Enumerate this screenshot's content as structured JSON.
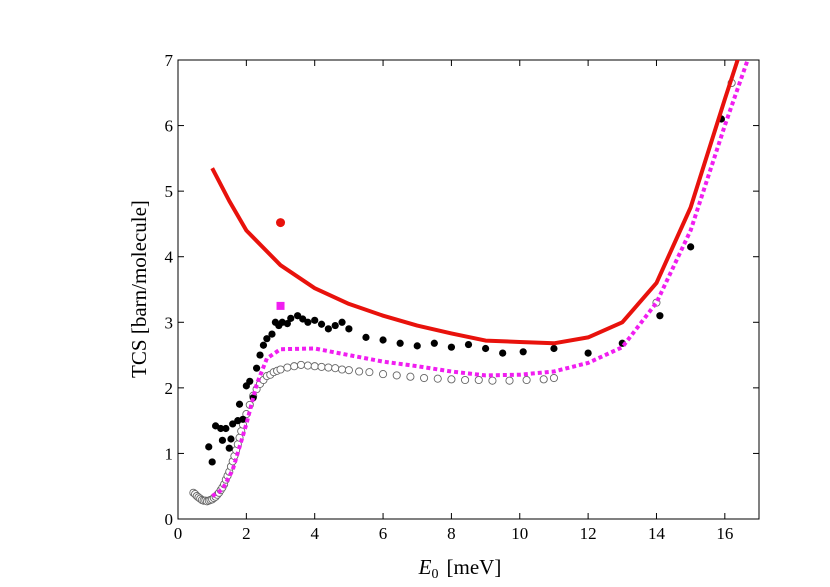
{
  "chart_data": {
    "type": "scatter",
    "xlabel_var": "E",
    "xlabel_sub": "0",
    "xlabel_unit": "[meV]",
    "ylabel": "TCS  [barn/molecule]",
    "xlim": [
      0,
      17
    ],
    "ylim": [
      0,
      7
    ],
    "xticks": [
      0,
      2,
      4,
      6,
      8,
      10,
      12,
      14,
      16
    ],
    "yticks": [
      0,
      1,
      2,
      3,
      4,
      5,
      6,
      7
    ],
    "grid": false,
    "colors": {
      "red": "#e8120c",
      "magenta": "#f01ef0",
      "black": "#000000",
      "open": "#666666"
    },
    "series": [
      {
        "style": "filled-black",
        "points": [
          [
            0.9,
            1.1
          ],
          [
            1.0,
            0.87
          ],
          [
            1.1,
            1.42
          ],
          [
            1.25,
            1.38
          ],
          [
            1.3,
            1.2
          ],
          [
            1.4,
            1.38
          ],
          [
            1.5,
            1.08
          ],
          [
            1.55,
            1.22
          ],
          [
            1.6,
            1.45
          ],
          [
            1.75,
            1.5
          ],
          [
            1.8,
            1.75
          ],
          [
            1.9,
            1.52
          ],
          [
            2.0,
            2.03
          ],
          [
            2.1,
            2.1
          ],
          [
            2.2,
            1.85
          ],
          [
            2.3,
            2.3
          ],
          [
            2.4,
            2.5
          ],
          [
            2.5,
            2.65
          ],
          [
            2.6,
            2.75
          ],
          [
            2.75,
            2.82
          ],
          [
            2.85,
            3.0
          ],
          [
            2.95,
            2.95
          ],
          [
            3.05,
            3.0
          ],
          [
            3.2,
            2.98
          ],
          [
            3.3,
            3.06
          ],
          [
            3.5,
            3.1
          ],
          [
            3.65,
            3.05
          ],
          [
            3.8,
            3.0
          ],
          [
            4.0,
            3.03
          ],
          [
            4.2,
            2.97
          ],
          [
            4.4,
            2.9
          ],
          [
            4.6,
            2.95
          ],
          [
            4.8,
            3.0
          ],
          [
            5.0,
            2.9
          ],
          [
            5.5,
            2.77
          ],
          [
            6.0,
            2.73
          ],
          [
            6.5,
            2.68
          ],
          [
            7.0,
            2.64
          ],
          [
            7.5,
            2.68
          ],
          [
            8.0,
            2.62
          ],
          [
            8.5,
            2.66
          ],
          [
            9.0,
            2.6
          ],
          [
            9.5,
            2.53
          ],
          [
            10.1,
            2.55
          ],
          [
            11.0,
            2.6
          ],
          [
            12.0,
            2.53
          ],
          [
            13.0,
            2.68
          ],
          [
            14.1,
            3.1
          ],
          [
            15.0,
            4.15
          ],
          [
            15.9,
            6.1
          ]
        ]
      },
      {
        "style": "open-circle",
        "points": [
          [
            0.45,
            0.4
          ],
          [
            0.5,
            0.38
          ],
          [
            0.55,
            0.35
          ],
          [
            0.6,
            0.33
          ],
          [
            0.65,
            0.31
          ],
          [
            0.7,
            0.29
          ],
          [
            0.75,
            0.28
          ],
          [
            0.8,
            0.28
          ],
          [
            0.85,
            0.27
          ],
          [
            0.9,
            0.28
          ],
          [
            0.95,
            0.29
          ],
          [
            1.0,
            0.3
          ],
          [
            1.05,
            0.32
          ],
          [
            1.1,
            0.34
          ],
          [
            1.15,
            0.37
          ],
          [
            1.2,
            0.4
          ],
          [
            1.25,
            0.44
          ],
          [
            1.3,
            0.48
          ],
          [
            1.35,
            0.53
          ],
          [
            1.4,
            0.6
          ],
          [
            1.45,
            0.66
          ],
          [
            1.5,
            0.72
          ],
          [
            1.55,
            0.8
          ],
          [
            1.6,
            0.88
          ],
          [
            1.65,
            0.96
          ],
          [
            1.7,
            1.05
          ],
          [
            1.75,
            1.14
          ],
          [
            1.8,
            1.24
          ],
          [
            1.85,
            1.34
          ],
          [
            1.9,
            1.44
          ],
          [
            2.0,
            1.6
          ],
          [
            2.1,
            1.74
          ],
          [
            2.2,
            1.88
          ],
          [
            2.3,
            1.98
          ],
          [
            2.4,
            2.06
          ],
          [
            2.5,
            2.12
          ],
          [
            2.6,
            2.18
          ],
          [
            2.7,
            2.2
          ],
          [
            2.8,
            2.24
          ],
          [
            2.9,
            2.26
          ],
          [
            3.0,
            2.28
          ],
          [
            3.2,
            2.31
          ],
          [
            3.4,
            2.33
          ],
          [
            3.6,
            2.35
          ],
          [
            3.8,
            2.34
          ],
          [
            4.0,
            2.33
          ],
          [
            4.2,
            2.32
          ],
          [
            4.4,
            2.31
          ],
          [
            4.6,
            2.3
          ],
          [
            4.8,
            2.28
          ],
          [
            5.0,
            2.27
          ],
          [
            5.3,
            2.25
          ],
          [
            5.6,
            2.24
          ],
          [
            6.0,
            2.21
          ],
          [
            6.4,
            2.19
          ],
          [
            6.8,
            2.17
          ],
          [
            7.2,
            2.15
          ],
          [
            7.6,
            2.14
          ],
          [
            8.0,
            2.13
          ],
          [
            8.4,
            2.12
          ],
          [
            8.8,
            2.12
          ],
          [
            9.2,
            2.11
          ],
          [
            9.7,
            2.11
          ],
          [
            10.2,
            2.12
          ],
          [
            10.7,
            2.13
          ],
          [
            11.0,
            2.15
          ],
          [
            14.0,
            3.3
          ],
          [
            16.2,
            6.65
          ]
        ]
      },
      {
        "style": "red-line",
        "points": [
          [
            1.0,
            5.35
          ],
          [
            1.5,
            4.85
          ],
          [
            2.0,
            4.4
          ],
          [
            3.0,
            3.87
          ],
          [
            4.0,
            3.52
          ],
          [
            5.0,
            3.28
          ],
          [
            6.0,
            3.1
          ],
          [
            7.0,
            2.95
          ],
          [
            8.0,
            2.83
          ],
          [
            9.0,
            2.72
          ],
          [
            10.0,
            2.7
          ],
          [
            11.0,
            2.68
          ],
          [
            12.0,
            2.77
          ],
          [
            13.0,
            3.0
          ],
          [
            14.0,
            3.6
          ],
          [
            15.0,
            4.75
          ],
          [
            16.0,
            6.4
          ],
          [
            16.5,
            7.2
          ]
        ]
      },
      {
        "style": "magenta-dotted",
        "points": [
          [
            1.0,
            0.35
          ],
          [
            1.3,
            0.45
          ],
          [
            1.6,
            0.75
          ],
          [
            2.0,
            1.45
          ],
          [
            2.3,
            2.05
          ],
          [
            2.6,
            2.45
          ],
          [
            3.0,
            2.59
          ],
          [
            4.0,
            2.6
          ],
          [
            5.0,
            2.5
          ],
          [
            6.0,
            2.4
          ],
          [
            7.0,
            2.33
          ],
          [
            8.0,
            2.25
          ],
          [
            9.0,
            2.19
          ],
          [
            10.0,
            2.2
          ],
          [
            11.0,
            2.25
          ],
          [
            12.0,
            2.38
          ],
          [
            13.0,
            2.62
          ],
          [
            14.0,
            3.3
          ],
          [
            15.0,
            4.4
          ],
          [
            16.0,
            6.0
          ],
          [
            16.8,
            7.2
          ]
        ]
      },
      {
        "style": "red-dot",
        "points": [
          [
            3.0,
            4.52
          ]
        ]
      },
      {
        "style": "magenta-square",
        "points": [
          [
            3.0,
            3.25
          ]
        ]
      }
    ]
  }
}
